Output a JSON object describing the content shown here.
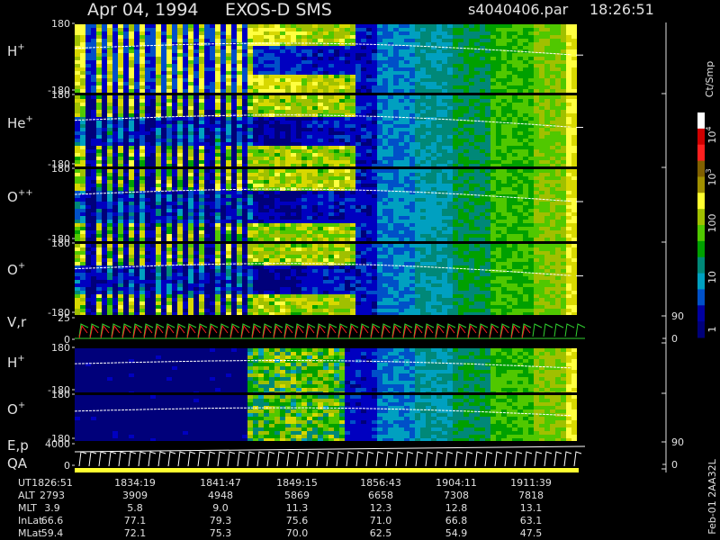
{
  "header": {
    "title": "Apr 04, 1994",
    "instrument": "EXOS-D SMS",
    "file": "s4040406.par",
    "time": "18:26:51"
  },
  "panels": [
    {
      "label": "H",
      "charge": "+",
      "ticks": [
        180,
        -180
      ]
    },
    {
      "label": "He",
      "charge": "+",
      "ticks": [
        180,
        -180
      ]
    },
    {
      "label": "O",
      "charge": "++",
      "ticks": [
        180,
        -180
      ]
    },
    {
      "label": "O",
      "charge": "+",
      "ticks": [
        180,
        -180
      ]
    },
    {
      "label": "V,r",
      "ticks": [
        25,
        0
      ],
      "right_ticks": [
        90,
        0
      ]
    },
    {
      "label": "H",
      "charge": "+",
      "ticks": [
        180,
        -180
      ]
    },
    {
      "label": "O",
      "charge": "+",
      "ticks": [
        180,
        -180
      ]
    },
    {
      "label": "E,p",
      "label2": "QA",
      "ticks": [
        4000,
        0
      ],
      "right_ticks": [
        90,
        0
      ]
    }
  ],
  "colorbar": {
    "unit": "Ct/Smp",
    "labels": [
      {
        "base": "10",
        "exp": "4"
      },
      {
        "base": "10",
        "exp": "3"
      },
      "100",
      "10",
      "1"
    ]
  },
  "table": {
    "rows": [
      {
        "label": "UT",
        "values": [
          "1826:51",
          "1834:19",
          "1841:47",
          "1849:15",
          "1856:43",
          "1904:11",
          "1911:39"
        ]
      },
      {
        "label": "ALT",
        "values": [
          "2793",
          "3909",
          "4948",
          "5869",
          "6658",
          "7308",
          "7818"
        ]
      },
      {
        "label": "MLT",
        "values": [
          "3.9",
          "5.8",
          "9.0",
          "11.3",
          "12.3",
          "12.8",
          "13.1"
        ]
      },
      {
        "label": "InLat",
        "values": [
          "66.6",
          "77.1",
          "79.3",
          "75.6",
          "71.0",
          "66.8",
          "63.1"
        ]
      },
      {
        "label": "MLat",
        "values": [
          "59.4",
          "72.1",
          "75.3",
          "70.0",
          "62.5",
          "54.9",
          "47.5"
        ]
      }
    ]
  },
  "footer": "Feb-01 2AA32L"
}
